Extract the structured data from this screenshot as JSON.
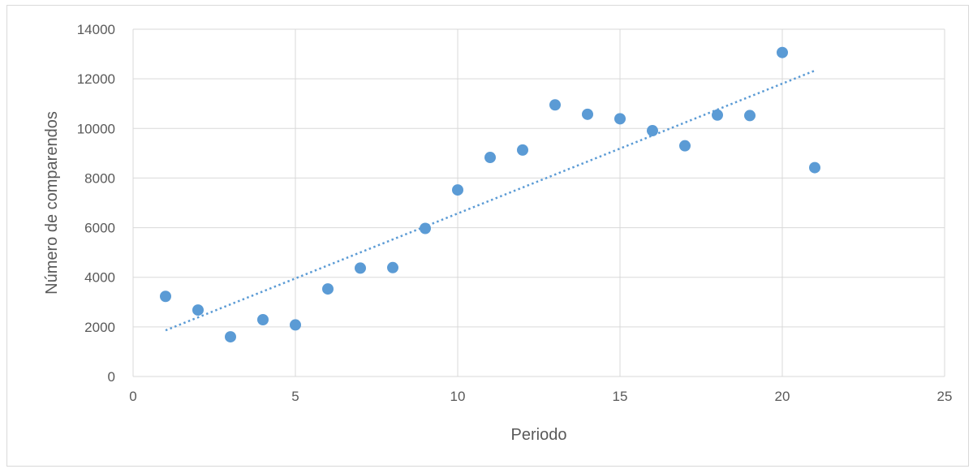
{
  "chart_data": {
    "type": "scatter",
    "xlabel": "Periodo",
    "ylabel": "Número de comparendos",
    "xlim": [
      0,
      25
    ],
    "ylim": [
      0,
      14000
    ],
    "x_ticks": [
      0,
      5,
      10,
      15,
      20,
      25
    ],
    "y_ticks": [
      0,
      2000,
      4000,
      6000,
      8000,
      10000,
      12000,
      14000
    ],
    "x_tick_labels": [
      "0",
      "5",
      "10",
      "15",
      "20",
      "25"
    ],
    "y_tick_labels": [
      "0",
      "2000",
      "4000",
      "6000",
      "8000",
      "10000",
      "12000",
      "14000"
    ],
    "grid": true,
    "legend": "none",
    "series": [
      {
        "x": [
          1,
          2,
          3,
          4,
          5,
          6,
          7,
          8,
          9,
          10,
          11,
          12,
          13,
          14,
          15,
          16,
          17,
          18,
          19,
          20,
          21
        ],
        "y": [
          3230,
          2680,
          1600,
          2290,
          2080,
          3530,
          4370,
          4390,
          5970,
          7520,
          8830,
          9130,
          10950,
          10570,
          10390,
          9910,
          9300,
          10540,
          10520,
          13060,
          8420
        ],
        "color": "#5b9bd5"
      }
    ],
    "trendline": {
      "type": "linear",
      "style": "dotted",
      "color": "#5b9bd5",
      "x": [
        1,
        21
      ],
      "y": [
        1860,
        12330
      ]
    }
  }
}
